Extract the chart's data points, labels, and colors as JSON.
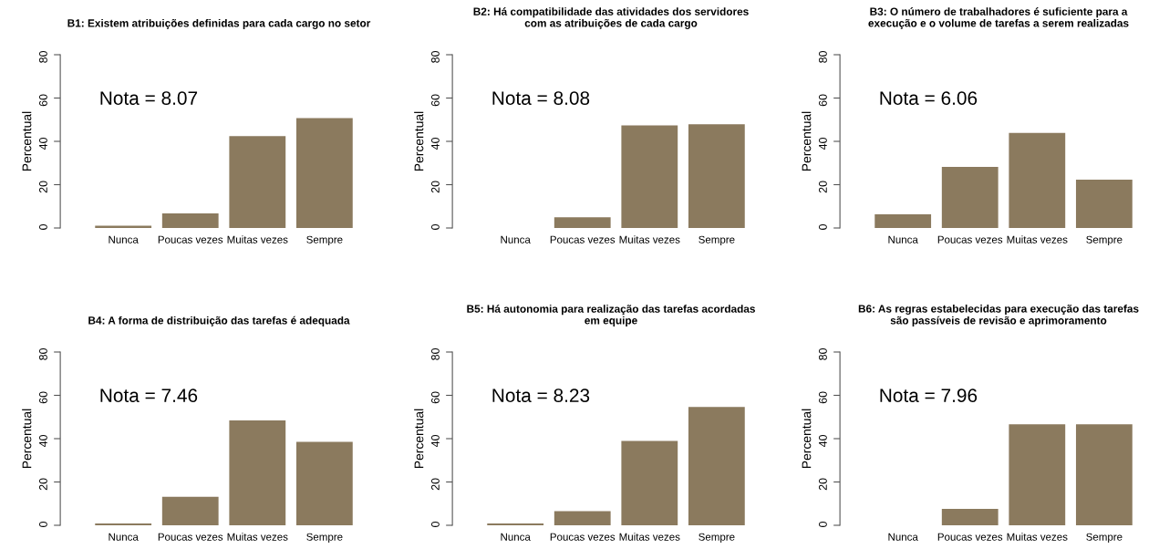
{
  "chart_data": [
    {
      "type": "bar",
      "title": "B1: Existem atribuições definidas para cada cargo no setor",
      "ylabel": "Percentual",
      "categories": [
        "Nunca",
        "Poucas vezes",
        "Muitas vezes",
        "Sempre"
      ],
      "values": [
        1.0,
        6.7,
        42.4,
        50.7
      ],
      "color": "#8b7a5e",
      "ylim": [
        0,
        80
      ],
      "yticks": [
        0,
        20,
        40,
        60,
        80
      ],
      "annotations": [
        "Nota = 8.07"
      ],
      "grid": false
    },
    {
      "type": "bar",
      "title": "B2: Há compatibilidade das atividades dos servidores\ncom as atribuições de cada cargo",
      "ylabel": "Percentual",
      "categories": [
        "Nunca",
        "Poucas vezes",
        "Muitas vezes",
        "Sempre"
      ],
      "values": [
        0,
        4.9,
        47.4,
        47.9
      ],
      "color": "#8b7a5e",
      "ylim": [
        0,
        80
      ],
      "yticks": [
        0,
        20,
        40,
        60,
        80
      ],
      "annotations": [
        "Nota = 8.08"
      ],
      "grid": false
    },
    {
      "type": "bar",
      "title": "B3: O número de trabalhadores é suficiente para a\nexecução e o volume de tarefas a serem realizadas",
      "ylabel": "Percentual",
      "categories": [
        "Nunca",
        "Poucas vezes",
        "Muitas vezes",
        "Sempre"
      ],
      "values": [
        6.3,
        28.2,
        43.9,
        22.3
      ],
      "color": "#8b7a5e",
      "ylim": [
        0,
        80
      ],
      "yticks": [
        0,
        20,
        40,
        60,
        80
      ],
      "annotations": [
        "Nota = 6.06"
      ],
      "grid": false
    },
    {
      "type": "bar",
      "title": "B4: A forma de distribuição das tarefas é adequada",
      "ylabel": "Percentual",
      "categories": [
        "Nunca",
        "Poucas vezes",
        "Muitas vezes",
        "Sempre"
      ],
      "values": [
        0.8,
        13.2,
        48.4,
        38.5
      ],
      "color": "#8b7a5e",
      "ylim": [
        0,
        80
      ],
      "yticks": [
        0,
        20,
        40,
        60,
        80
      ],
      "annotations": [
        "Nota = 7.46"
      ],
      "grid": false
    },
    {
      "type": "bar",
      "title": "B5: Há autonomia para realização das tarefas acordadas\nem equipe",
      "ylabel": "Percentual",
      "categories": [
        "Nunca",
        "Poucas vezes",
        "Muitas vezes",
        "Sempre"
      ],
      "values": [
        0.8,
        6.5,
        38.9,
        54.6
      ],
      "color": "#8b7a5e",
      "ylim": [
        0,
        80
      ],
      "yticks": [
        0,
        20,
        40,
        60,
        80
      ],
      "annotations": [
        "Nota = 8.23"
      ],
      "grid": false
    },
    {
      "type": "bar",
      "title": "B6: As regras estabelecidas para execução das tarefas\nsão passíveis de revisão e aprimoramento",
      "ylabel": "Percentual",
      "categories": [
        "Nunca",
        "Poucas vezes",
        "Muitas vezes",
        "Sempre"
      ],
      "values": [
        0,
        7.6,
        46.6,
        46.6
      ],
      "color": "#8b7a5e",
      "ylim": [
        0,
        80
      ],
      "yticks": [
        0,
        20,
        40,
        60,
        80
      ],
      "annotations": [
        "Nota = 7.96"
      ],
      "grid": false
    }
  ]
}
